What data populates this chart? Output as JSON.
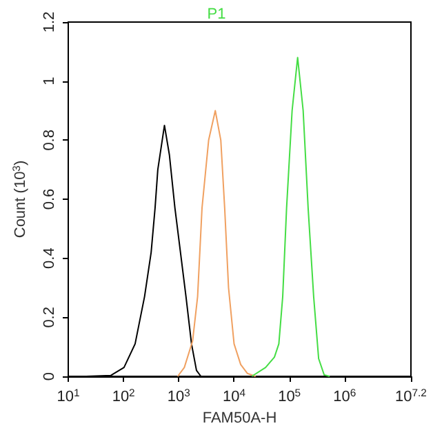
{
  "chart_data": {
    "type": "line",
    "title": "P1",
    "xlabel": "FAM50A-H",
    "ylabel": "Count (10$^{3}$)",
    "log": "x",
    "xlim": [
      10,
      15848932
    ],
    "xticks": [
      {
        "value": 10,
        "label": "10$^{1}$"
      },
      {
        "value": 100,
        "label": "10$^{2}$"
      },
      {
        "value": 1000,
        "label": "10$^{3}$"
      },
      {
        "value": 10000,
        "label": "10$^{4}$"
      },
      {
        "value": 100000,
        "label": "10$^{5}$"
      },
      {
        "value": 1000000,
        "label": "10$^{6}$"
      },
      {
        "value": 15848932,
        "label": "10$^{7.2}$"
      }
    ],
    "ylim": [
      0,
      1.2
    ],
    "yticks": [
      0,
      0.2,
      0.4,
      0.6,
      0.8,
      1,
      1.2
    ],
    "grid": false,
    "marker": "none",
    "line_style": "solid",
    "series": [
      {
        "color": "#000000",
        "x": [
          21,
          59,
          102,
          162,
          240,
          316,
          372,
          417,
          550,
          676,
          851,
          1072,
          1349,
          1698,
          2089,
          2512
        ],
        "values": [
          0,
          0.003,
          0.03,
          0.11,
          0.27,
          0.42,
          0.57,
          0.7,
          0.85,
          0.75,
          0.57,
          0.42,
          0.27,
          0.11,
          0.02,
          0
        ]
      },
      {
        "color": "#f0a060",
        "x": [
          955,
          1259,
          1778,
          2188,
          2630,
          3467,
          4571,
          5754,
          6761,
          7943,
          10000,
          13183,
          17378,
          24547
        ],
        "values": [
          0,
          0.03,
          0.12,
          0.27,
          0.57,
          0.8,
          0.9,
          0.8,
          0.57,
          0.3,
          0.11,
          0.04,
          0.01,
          0
        ]
      },
      {
        "color": "#44dd44",
        "x": [
          20893,
          37154,
          53703,
          64565,
          75858,
          89125,
          112202,
          141254,
          177828,
          218776,
          275423,
          338844,
          426580,
          537032
        ],
        "values": [
          0,
          0.03,
          0.065,
          0.11,
          0.27,
          0.57,
          0.9,
          1.08,
          0.9,
          0.57,
          0.27,
          0.06,
          0.005,
          0
        ]
      }
    ]
  }
}
